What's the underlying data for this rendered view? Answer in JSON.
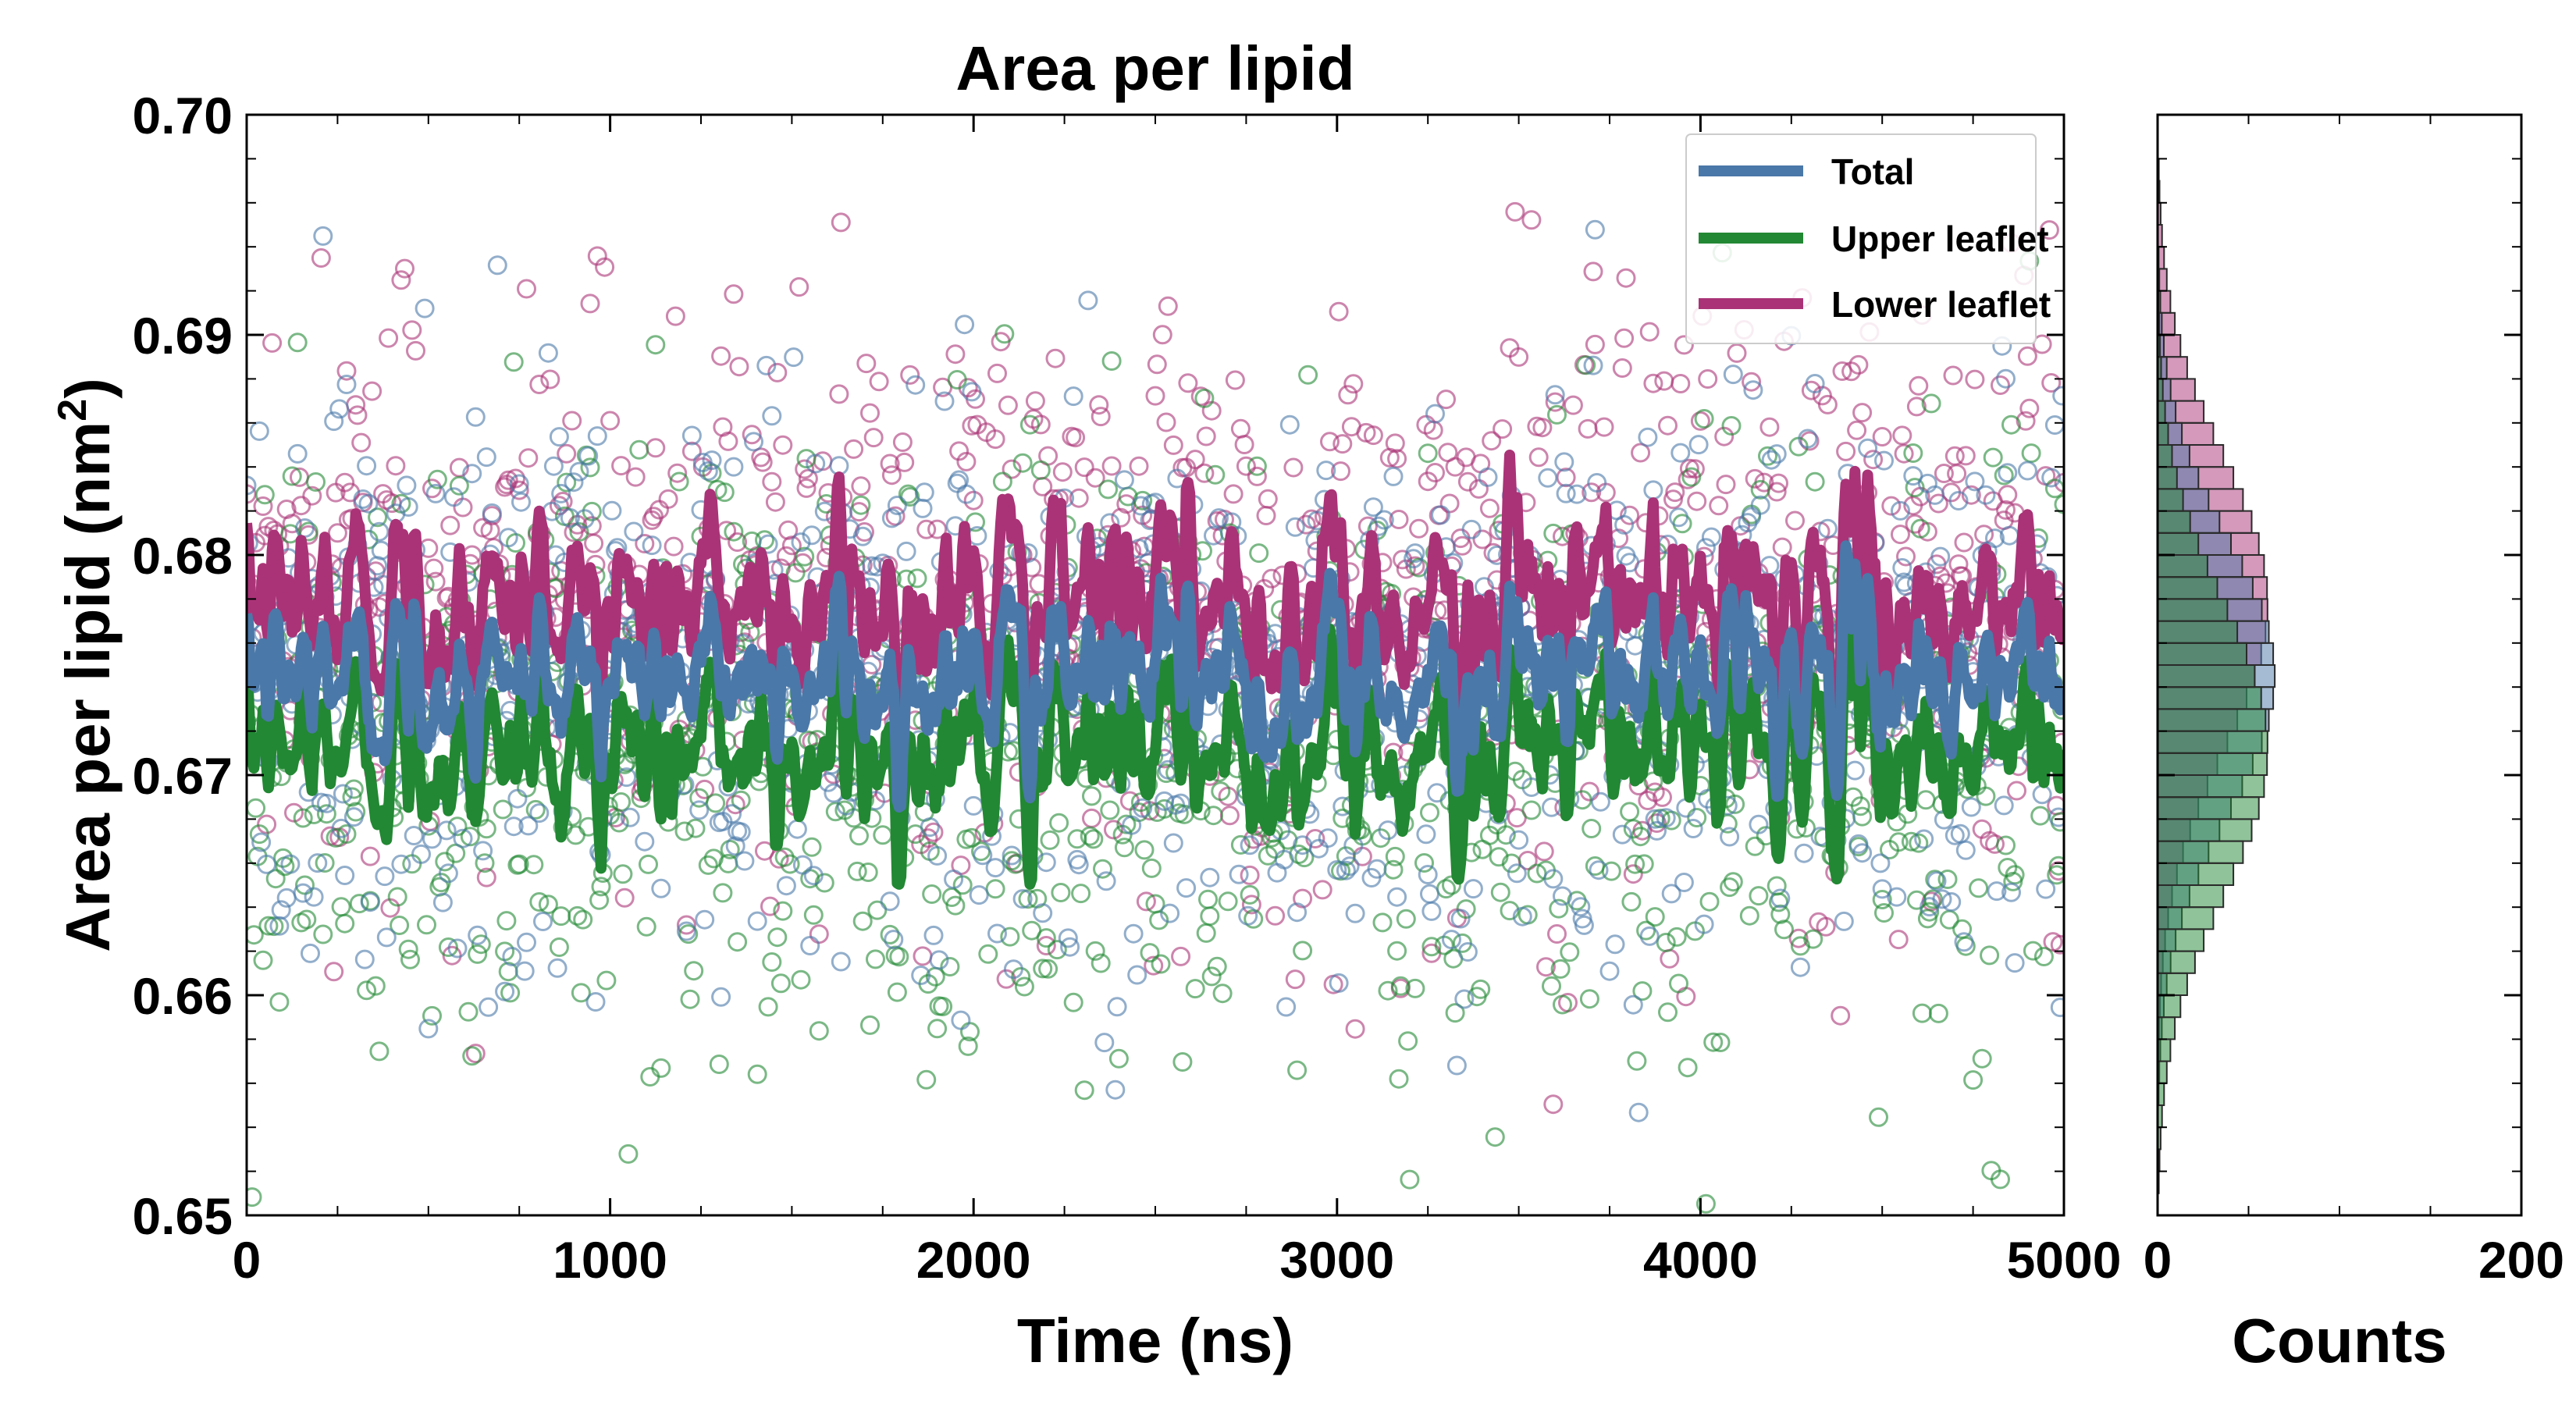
{
  "chart_data": [
    {
      "type": "scatter+line",
      "title": "Area per lipid",
      "xlabel": "Time (ns)",
      "ylabel": "Area per lipid (nm",
      "ylabel_sup": "2",
      "ylabel_close": ")",
      "xlim": [
        0,
        5000
      ],
      "ylim": [
        0.65,
        0.7
      ],
      "xticks": [
        "0",
        "1000",
        "2000",
        "3000",
        "4000",
        "5000"
      ],
      "yticks": [
        "0.65",
        "0.66",
        "0.67",
        "0.68",
        "0.69",
        "0.70"
      ],
      "xtick_values": [
        0,
        1000,
        2000,
        3000,
        4000,
        5000
      ],
      "ytick_values": [
        0.65,
        0.66,
        0.67,
        0.68,
        0.69,
        0.7
      ],
      "legend_position": "top-right",
      "series": [
        {
          "name": "Total",
          "color": "#4a78a8",
          "mean": 0.6745,
          "raw_std": 0.0062,
          "smooth_std": 0.0022
        },
        {
          "name": "Upper leaflet",
          "color": "#228833",
          "mean": 0.6712,
          "raw_std": 0.0066,
          "smooth_std": 0.0024
        },
        {
          "name": "Lower leaflet",
          "color": "#aa3377",
          "mean": 0.6778,
          "raw_std": 0.0066,
          "smooth_std": 0.0026
        }
      ],
      "n_points": 1001,
      "time_step_ns": 5
    },
    {
      "type": "histogram",
      "orientation": "horizontal",
      "xlabel": "Counts",
      "xlim": [
        0,
        200
      ],
      "xticks": [
        "0",
        "200"
      ],
      "xtick_values": [
        0,
        200
      ],
      "ylim": [
        0.65,
        0.7
      ],
      "bin_width": 0.001,
      "series": [
        {
          "name": "Lower leaflet",
          "color": "#aa3377",
          "mean": 0.6778,
          "std": 0.0066
        },
        {
          "name": "Total",
          "color": "#4a78a8",
          "mean": 0.6745,
          "std": 0.0062
        },
        {
          "name": "Upper leaflet",
          "color": "#228833",
          "mean": 0.6712,
          "std": 0.0066
        }
      ]
    }
  ]
}
